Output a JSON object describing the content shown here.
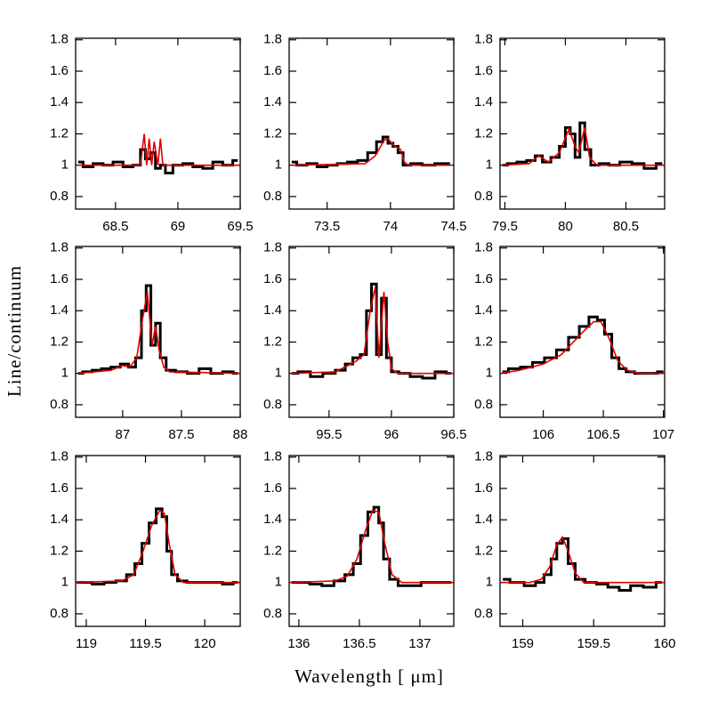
{
  "xlabel": "Wavelength [ μm]",
  "ylabel": "Line/continuum",
  "chart_data": [
    {
      "type": "line",
      "xlim": [
        68.18,
        69.5
      ],
      "xticks": [
        68.5,
        69,
        69.5
      ],
      "ylim": [
        0.72,
        1.81
      ],
      "yticks": [
        0.8,
        1,
        1.2,
        1.4,
        1.6,
        1.8
      ],
      "series": [
        {
          "color": "#000000",
          "drawstyle": "steps",
          "x": [
            68.2,
            68.28,
            68.36,
            68.44,
            68.52,
            68.6,
            68.68,
            68.72,
            68.76,
            68.8,
            68.84,
            68.88,
            68.92,
            69.0,
            69.08,
            69.16,
            69.24,
            69.32,
            69.4,
            69.48
          ],
          "values": [
            1.02,
            0.99,
            1.01,
            1.0,
            1.02,
            0.99,
            1.0,
            1.1,
            1.04,
            1.08,
            0.98,
            1.0,
            0.95,
            1.0,
            1.01,
            0.99,
            0.98,
            1.02,
            1.0,
            1.03
          ]
        },
        {
          "color": "#e00000",
          "drawstyle": "line",
          "x": [
            68.2,
            68.7,
            68.73,
            68.75,
            68.77,
            68.79,
            68.81,
            68.84,
            68.86,
            68.88,
            68.9,
            69.5
          ],
          "values": [
            1.0,
            1.0,
            1.2,
            1.0,
            1.17,
            1.0,
            1.15,
            1.0,
            1.17,
            1.0,
            1.0,
            1.0
          ]
        }
      ]
    },
    {
      "type": "line",
      "xlim": [
        73.2,
        74.5
      ],
      "xticks": [
        73.5,
        74,
        74.5
      ],
      "ylim": [
        0.72,
        1.81
      ],
      "yticks": [
        0.8,
        1,
        1.2,
        1.4,
        1.6,
        1.8
      ],
      "series": [
        {
          "color": "#000000",
          "drawstyle": "steps",
          "x": [
            73.22,
            73.3,
            73.38,
            73.46,
            73.54,
            73.62,
            73.7,
            73.78,
            73.86,
            73.92,
            73.96,
            74.0,
            74.04,
            74.08,
            74.12,
            74.2,
            74.3,
            74.4,
            74.47
          ],
          "values": [
            1.02,
            1.0,
            1.01,
            0.99,
            1.0,
            1.01,
            1.02,
            1.03,
            1.08,
            1.15,
            1.18,
            1.14,
            1.12,
            1.08,
            1.0,
            1.01,
            1.0,
            1.01,
            1.01
          ]
        },
        {
          "color": "#e00000",
          "drawstyle": "line",
          "x": [
            73.22,
            73.8,
            73.88,
            73.95,
            73.98,
            74.02,
            74.08,
            74.11,
            74.14,
            74.47
          ],
          "values": [
            1.0,
            1.01,
            1.06,
            1.16,
            1.17,
            1.13,
            1.1,
            1.02,
            1.0,
            1.0
          ]
        }
      ]
    },
    {
      "type": "line",
      "xlim": [
        79.46,
        80.82
      ],
      "xticks": [
        79.5,
        80,
        80.5
      ],
      "ylim": [
        0.72,
        1.81
      ],
      "yticks": [
        0.8,
        1,
        1.2,
        1.4,
        1.6,
        1.8
      ],
      "series": [
        {
          "color": "#000000",
          "drawstyle": "steps",
          "x": [
            79.48,
            79.56,
            79.64,
            79.72,
            79.78,
            79.84,
            79.92,
            79.98,
            80.02,
            80.06,
            80.1,
            80.14,
            80.18,
            80.24,
            80.32,
            80.4,
            80.5,
            80.6,
            80.7,
            80.8
          ],
          "values": [
            1.0,
            1.01,
            1.02,
            1.03,
            1.06,
            1.02,
            1.05,
            1.12,
            1.24,
            1.2,
            1.05,
            1.27,
            1.1,
            1.0,
            1.01,
            1.0,
            1.02,
            1.01,
            0.98,
            1.01
          ]
        },
        {
          "color": "#e00000",
          "drawstyle": "line",
          "x": [
            79.48,
            79.7,
            79.78,
            79.86,
            79.95,
            80.03,
            80.08,
            80.11,
            80.16,
            80.2,
            80.26,
            80.82
          ],
          "values": [
            1.0,
            1.01,
            1.06,
            1.02,
            1.08,
            1.23,
            1.12,
            1.08,
            1.24,
            1.05,
            1.0,
            1.0
          ]
        }
      ]
    },
    {
      "type": "line",
      "xlim": [
        86.6,
        88
      ],
      "xticks": [
        87,
        87.5,
        88
      ],
      "ylim": [
        0.72,
        1.81
      ],
      "yticks": [
        0.8,
        1,
        1.2,
        1.4,
        1.6,
        1.8
      ],
      "series": [
        {
          "color": "#000000",
          "drawstyle": "steps",
          "x": [
            86.62,
            86.7,
            86.78,
            86.86,
            86.94,
            87.02,
            87.08,
            87.14,
            87.18,
            87.22,
            87.26,
            87.3,
            87.34,
            87.4,
            87.5,
            87.6,
            87.7,
            87.8,
            87.9,
            87.98
          ],
          "values": [
            1.0,
            1.01,
            1.02,
            1.03,
            1.04,
            1.06,
            1.04,
            1.1,
            1.4,
            1.56,
            1.18,
            1.32,
            1.1,
            1.02,
            1.01,
            1.0,
            1.03,
            1.0,
            1.01,
            1.0
          ]
        },
        {
          "color": "#e00000",
          "drawstyle": "line",
          "x": [
            86.62,
            86.9,
            87.0,
            87.06,
            87.12,
            87.17,
            87.21,
            87.25,
            87.28,
            87.31,
            87.35,
            87.4,
            88.0
          ],
          "values": [
            1.0,
            1.02,
            1.05,
            1.04,
            1.1,
            1.35,
            1.52,
            1.18,
            1.3,
            1.15,
            1.04,
            1.01,
            1.0
          ]
        }
      ]
    },
    {
      "type": "line",
      "xlim": [
        95.18,
        96.5
      ],
      "xticks": [
        95.5,
        96,
        96.5
      ],
      "ylim": [
        0.72,
        1.81
      ],
      "yticks": [
        0.8,
        1,
        1.2,
        1.4,
        1.6,
        1.8
      ],
      "series": [
        {
          "color": "#000000",
          "drawstyle": "steps",
          "x": [
            95.2,
            95.3,
            95.4,
            95.5,
            95.6,
            95.66,
            95.72,
            95.78,
            95.82,
            95.86,
            95.9,
            95.94,
            95.98,
            96.02,
            96.1,
            96.2,
            96.3,
            96.4,
            96.48
          ],
          "values": [
            1.0,
            1.01,
            0.98,
            1.0,
            1.02,
            1.06,
            1.1,
            1.12,
            1.4,
            1.57,
            1.12,
            1.48,
            1.1,
            1.01,
            1.0,
            0.98,
            0.97,
            1.01,
            1.0
          ]
        },
        {
          "color": "#e00000",
          "drawstyle": "line",
          "x": [
            95.2,
            95.55,
            95.65,
            95.72,
            95.78,
            95.83,
            95.87,
            95.9,
            95.94,
            95.97,
            96.0,
            96.05,
            96.5
          ],
          "values": [
            1.0,
            1.01,
            1.05,
            1.08,
            1.12,
            1.4,
            1.55,
            1.1,
            1.52,
            1.2,
            1.03,
            1.0,
            1.0
          ]
        }
      ]
    },
    {
      "type": "line",
      "xlim": [
        105.64,
        107.01
      ],
      "xticks": [
        106,
        106.5,
        107
      ],
      "ylim": [
        0.72,
        1.81
      ],
      "yticks": [
        0.8,
        1,
        1.2,
        1.4,
        1.6,
        1.8
      ],
      "series": [
        {
          "color": "#000000",
          "drawstyle": "steps",
          "x": [
            105.66,
            105.76,
            105.86,
            105.96,
            106.06,
            106.16,
            106.26,
            106.34,
            106.42,
            106.48,
            106.54,
            106.6,
            106.66,
            106.72,
            106.8,
            106.9,
            107.0
          ],
          "values": [
            1.01,
            1.03,
            1.04,
            1.07,
            1.1,
            1.15,
            1.23,
            1.3,
            1.36,
            1.34,
            1.25,
            1.1,
            1.03,
            1.01,
            1.0,
            1.0,
            1.01
          ]
        },
        {
          "color": "#e00000",
          "drawstyle": "line",
          "x": [
            105.64,
            105.8,
            106.0,
            106.15,
            106.25,
            106.35,
            106.42,
            106.48,
            106.55,
            106.62,
            106.7,
            106.8,
            107.01
          ],
          "values": [
            1.0,
            1.02,
            1.06,
            1.12,
            1.2,
            1.28,
            1.33,
            1.33,
            1.22,
            1.08,
            1.02,
            1.0,
            1.0
          ]
        }
      ]
    },
    {
      "type": "line",
      "xlim": [
        118.91,
        120.3
      ],
      "xticks": [
        119,
        119.5,
        120
      ],
      "ylim": [
        0.72,
        1.81
      ],
      "yticks": [
        0.8,
        1,
        1.2,
        1.4,
        1.6,
        1.8
      ],
      "series": [
        {
          "color": "#000000",
          "drawstyle": "steps",
          "x": [
            118.92,
            119.0,
            119.1,
            119.2,
            119.3,
            119.38,
            119.44,
            119.5,
            119.56,
            119.62,
            119.66,
            119.7,
            119.74,
            119.8,
            119.9,
            120.0,
            120.1,
            120.2,
            120.28
          ],
          "values": [
            1.0,
            1.0,
            0.99,
            1.0,
            1.01,
            1.05,
            1.12,
            1.25,
            1.38,
            1.47,
            1.42,
            1.2,
            1.05,
            1.01,
            1.0,
            1.0,
            1.0,
            0.99,
            1.0
          ]
        },
        {
          "color": "#e00000",
          "drawstyle": "line",
          "x": [
            118.91,
            119.3,
            119.4,
            119.48,
            119.55,
            119.62,
            119.66,
            119.7,
            119.75,
            119.82,
            120.3
          ],
          "values": [
            1.0,
            1.01,
            1.05,
            1.2,
            1.36,
            1.46,
            1.44,
            1.25,
            1.05,
            1.0,
            1.0
          ]
        }
      ]
    },
    {
      "type": "line",
      "xlim": [
        135.92,
        137.28
      ],
      "xticks": [
        136,
        136.5,
        137
      ],
      "ylim": [
        0.72,
        1.81
      ],
      "yticks": [
        0.8,
        1,
        1.2,
        1.4,
        1.6,
        1.8
      ],
      "series": [
        {
          "color": "#000000",
          "drawstyle": "steps",
          "x": [
            135.94,
            136.04,
            136.14,
            136.24,
            136.34,
            136.42,
            136.48,
            136.54,
            136.6,
            136.64,
            136.68,
            136.72,
            136.78,
            136.86,
            136.96,
            137.06,
            137.16,
            137.26
          ],
          "values": [
            1.0,
            1.0,
            0.99,
            0.98,
            1.01,
            1.05,
            1.12,
            1.3,
            1.45,
            1.48,
            1.38,
            1.15,
            1.02,
            0.98,
            0.98,
            1.0,
            1.0,
            1.0
          ]
        },
        {
          "color": "#e00000",
          "drawstyle": "line",
          "x": [
            135.92,
            136.3,
            136.4,
            136.48,
            136.55,
            136.61,
            136.66,
            136.71,
            136.77,
            136.85,
            137.28
          ],
          "values": [
            1.0,
            1.01,
            1.04,
            1.15,
            1.33,
            1.46,
            1.45,
            1.25,
            1.05,
            1.0,
            1.0
          ]
        }
      ]
    },
    {
      "type": "line",
      "xlim": [
        158.84,
        160
      ],
      "xticks": [
        159,
        159.5,
        160
      ],
      "ylim": [
        0.72,
        1.81
      ],
      "yticks": [
        0.8,
        1,
        1.2,
        1.4,
        1.6,
        1.8
      ],
      "series": [
        {
          "color": "#000000",
          "drawstyle": "steps",
          "x": [
            158.86,
            158.96,
            159.06,
            159.12,
            159.18,
            159.22,
            159.26,
            159.3,
            159.34,
            159.4,
            159.48,
            159.56,
            159.64,
            159.72,
            159.8,
            159.9,
            159.98
          ],
          "values": [
            1.02,
            1.0,
            0.98,
            1.0,
            1.05,
            1.15,
            1.25,
            1.28,
            1.12,
            1.02,
            1.0,
            0.99,
            0.97,
            0.95,
            0.98,
            0.97,
            1.0
          ]
        },
        {
          "color": "#e00000",
          "drawstyle": "line",
          "x": [
            158.84,
            159.05,
            159.13,
            159.19,
            159.24,
            159.28,
            159.32,
            159.37,
            159.43,
            159.55,
            160.0
          ],
          "values": [
            1.0,
            1.0,
            1.02,
            1.1,
            1.24,
            1.29,
            1.2,
            1.06,
            1.0,
            1.0,
            1.0
          ]
        }
      ]
    }
  ]
}
